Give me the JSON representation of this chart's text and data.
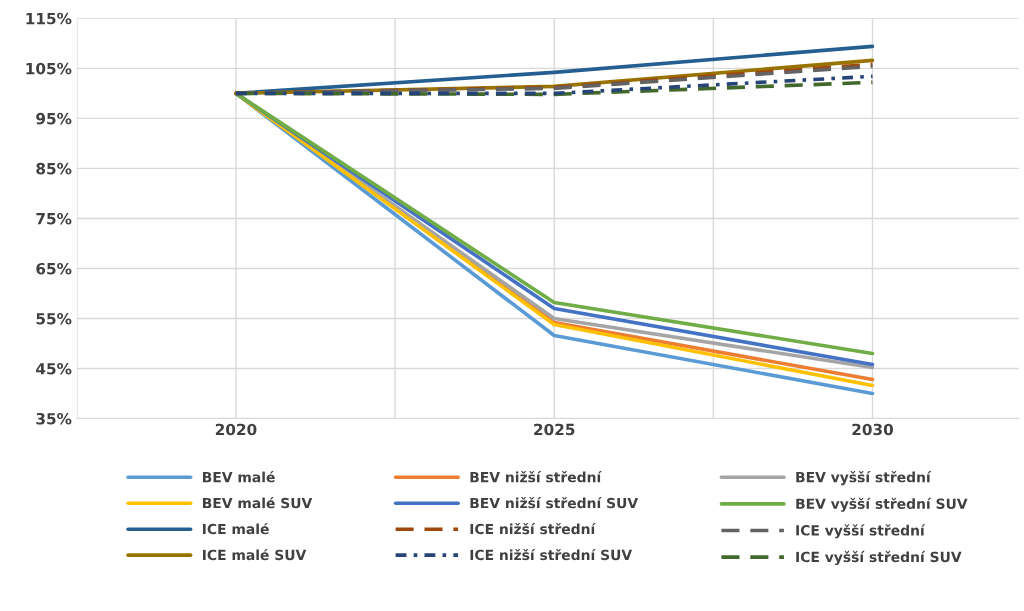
{
  "chart_data": {
    "type": "line",
    "categories": [
      "2020",
      "2025",
      "2030"
    ],
    "ylim": [
      35,
      115
    ],
    "yticks": [
      {
        "value": 35,
        "label": "35%"
      },
      {
        "value": 45,
        "label": "45%"
      },
      {
        "value": 55,
        "label": "55%"
      },
      {
        "value": 65,
        "label": "65%"
      },
      {
        "value": 75,
        "label": "75%"
      },
      {
        "value": 85,
        "label": "85%"
      },
      {
        "value": 95,
        "label": "95%"
      },
      {
        "value": 105,
        "label": "105%"
      },
      {
        "value": 115,
        "label": "115%"
      }
    ],
    "grid": true,
    "legend": "bottom",
    "marker": "none",
    "series": [
      {
        "name": "BEV malé",
        "color": "#5b9bd5",
        "line_style": "solid",
        "values": [
          100,
          51.6,
          40.0
        ]
      },
      {
        "name": "BEV nižší střední",
        "color": "#ed7d31",
        "line_style": "solid",
        "values": [
          100,
          54.2,
          42.8
        ]
      },
      {
        "name": "BEV vyšší střední",
        "color": "#a5a5a5",
        "line_style": "solid",
        "values": [
          100,
          55.0,
          45.2
        ]
      },
      {
        "name": "BEV malé SUV",
        "color": "#ffc000",
        "line_style": "solid",
        "values": [
          100,
          53.8,
          41.6
        ]
      },
      {
        "name": "BEV nižší střední SUV",
        "color": "#4472c4",
        "line_style": "solid",
        "values": [
          100,
          57.0,
          45.8
        ]
      },
      {
        "name": "BEV vyšší střední SUV",
        "color": "#70ad47",
        "line_style": "solid",
        "values": [
          100,
          58.2,
          48.0
        ]
      },
      {
        "name": "ICE malé",
        "color": "#255e91",
        "line_style": "solid",
        "values": [
          100,
          104.2,
          109.4
        ]
      },
      {
        "name": "ICE nižší střední",
        "color": "#9e480e",
        "line_style": "dashed",
        "values": [
          100,
          101.2,
          105.8
        ]
      },
      {
        "name": "ICE vyšší střední",
        "color": "#636363",
        "line_style": "dashed",
        "values": [
          100,
          101.0,
          105.4
        ]
      },
      {
        "name": "ICE malé SUV",
        "color": "#997300",
        "line_style": "solid",
        "values": [
          100,
          101.4,
          106.6
        ]
      },
      {
        "name": "ICE nižší střední SUV",
        "color": "#264478",
        "line_style": "dashdot",
        "values": [
          100,
          100.0,
          103.4
        ]
      },
      {
        "name": "ICE vyšší střední SUV",
        "color": "#43682b",
        "line_style": "dashed",
        "values": [
          100,
          99.8,
          102.2
        ]
      }
    ]
  }
}
